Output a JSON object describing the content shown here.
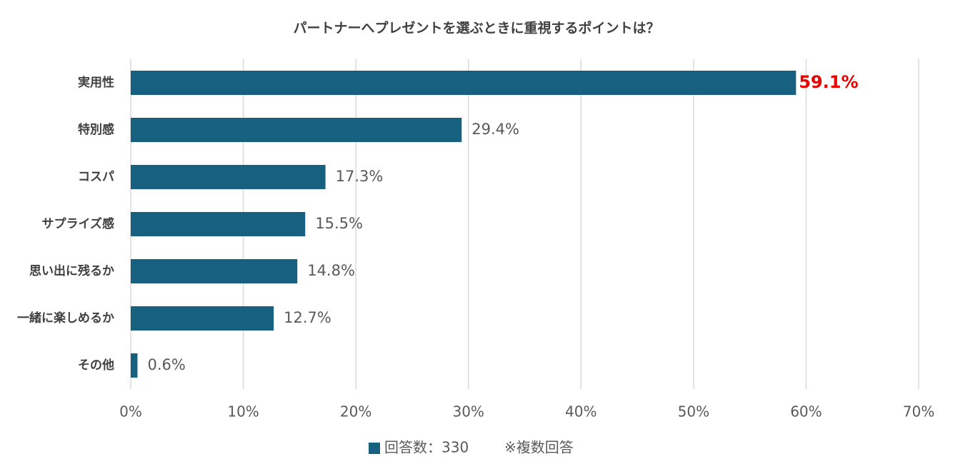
{
  "chart_data": {
    "type": "bar",
    "orientation": "horizontal",
    "title": "パートナーへプレゼントを選ぶときに重視するポイントは？",
    "categories": [
      "実用性",
      "特別感",
      "コスパ",
      "サプライズ感",
      "思い出に残るか",
      "一緒に楽しめるか",
      "その他"
    ],
    "series": [
      {
        "name": "回答数：330",
        "color": "#17607f",
        "values": [
          59.1,
          29.4,
          17.3,
          15.5,
          14.8,
          12.7,
          0.6
        ],
        "value_labels": [
          "59.1%",
          "29.4%",
          "17.3%",
          "15.5%",
          "14.8%",
          "12.7%",
          "0.6%"
        ],
        "value_label_colors": [
          "#e60000",
          "#595959",
          "#595959",
          "#595959",
          "#595959",
          "#595959",
          "#595959"
        ]
      }
    ],
    "note": "※複数回答",
    "xlim": [
      0,
      70
    ],
    "xticks": [
      {
        "value": 0,
        "label": "0%"
      },
      {
        "value": 10,
        "label": "10%"
      },
      {
        "value": 20,
        "label": "20%"
      },
      {
        "value": 30,
        "label": "30%"
      },
      {
        "value": 40,
        "label": "40%"
      },
      {
        "value": 50,
        "label": "50%"
      },
      {
        "value": 60,
        "label": "60%"
      },
      {
        "value": 70,
        "label": "70%"
      }
    ],
    "grid": true,
    "legend": "bottom"
  }
}
